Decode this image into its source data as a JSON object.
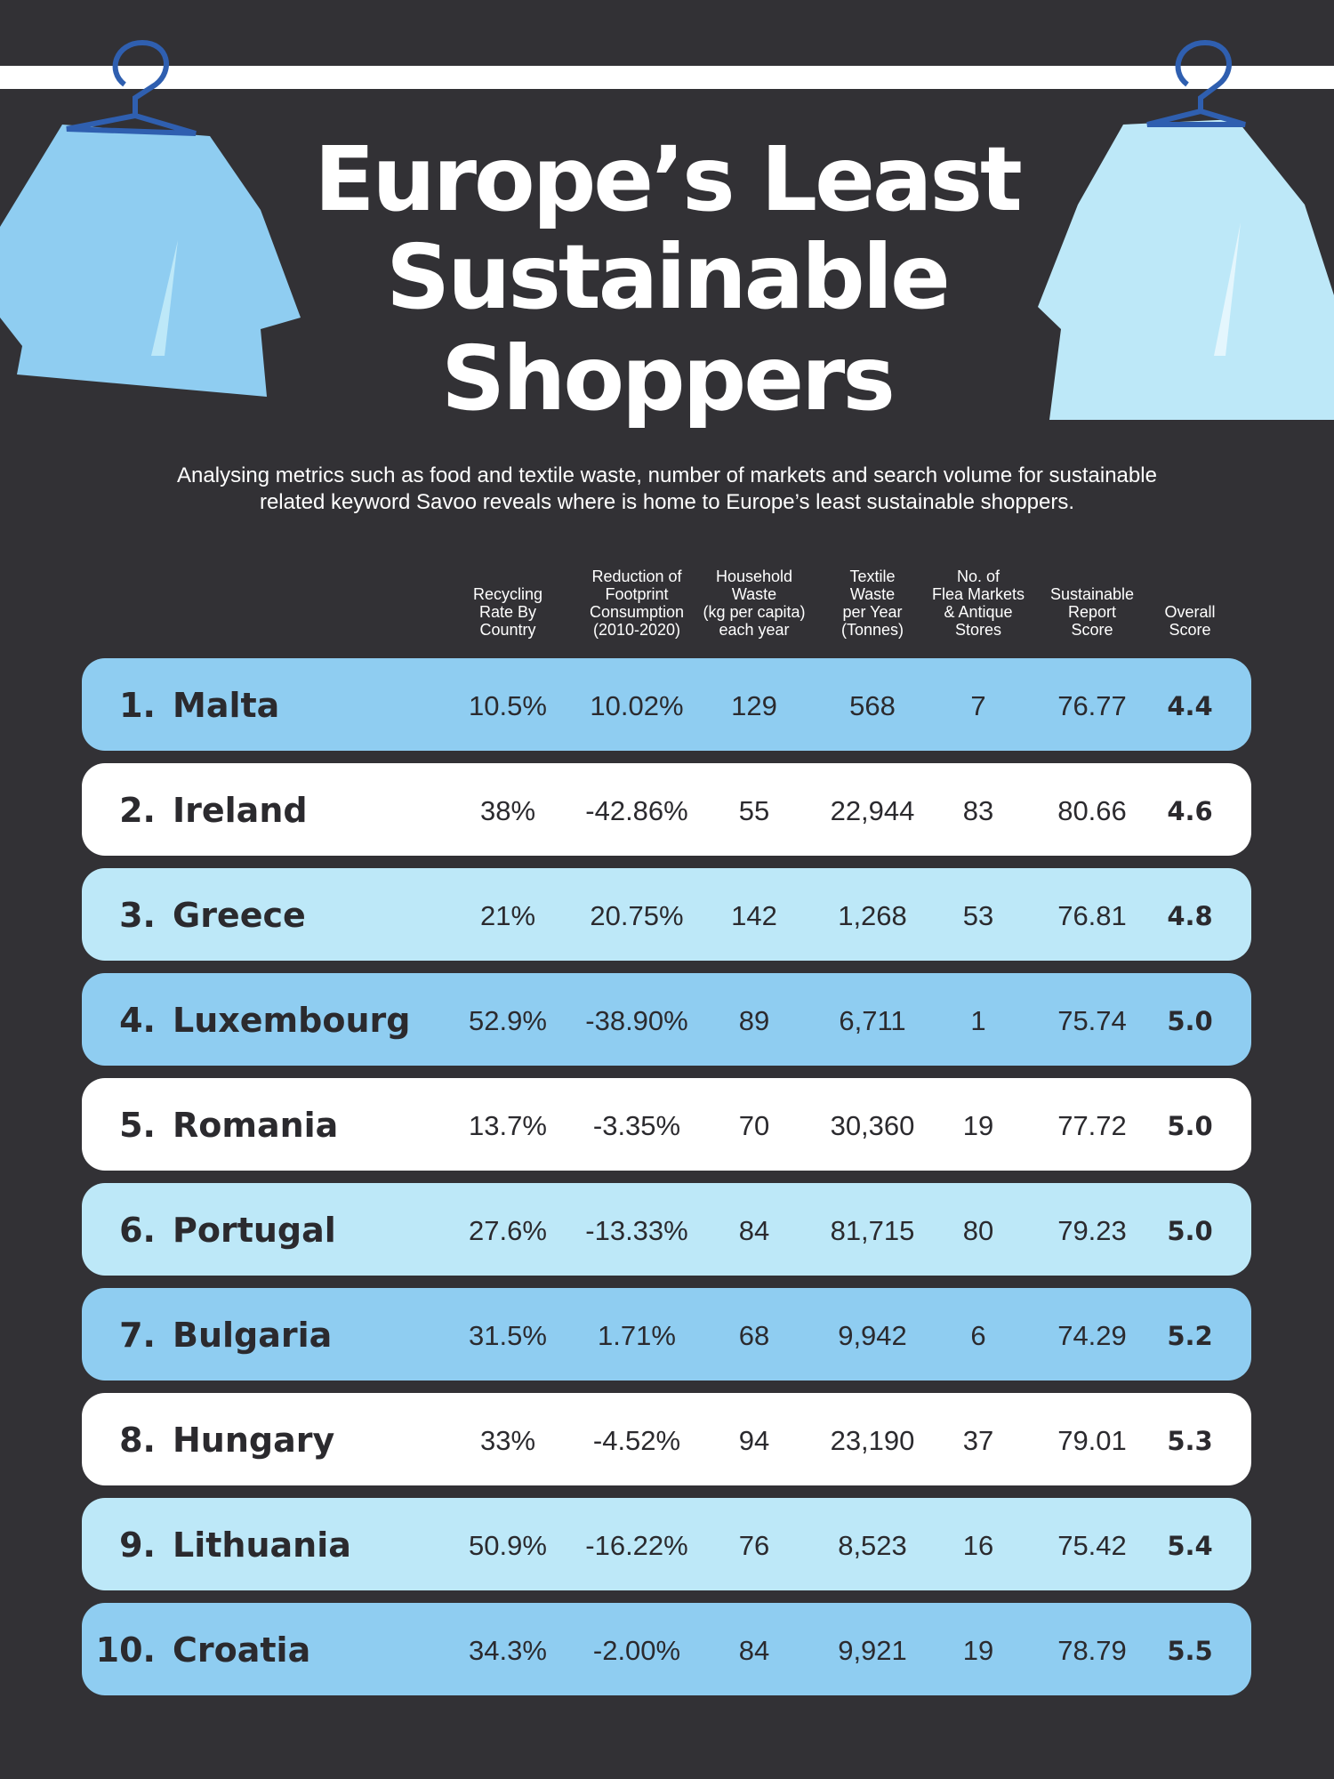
{
  "header": {
    "title": [
      "Europe’s Least",
      "Sustainable",
      "Shoppers"
    ],
    "subtitle": [
      "Analysing metrics such as food and textile waste, number of markets and search volume for sustainable",
      "related keyword Savoo reveals where is home to Europe’s least sustainable shoppers."
    ]
  },
  "table": {
    "columns": [
      [
        "Recycling",
        "Rate By",
        "Country"
      ],
      [
        "Reduction of",
        "Footprint",
        "Consumption",
        "(2010-2020)"
      ],
      [
        "Household",
        "Waste",
        "(kg per capita)",
        "each year"
      ],
      [
        "Textile",
        "Waste",
        "per Year",
        "(Tonnes)"
      ],
      [
        "No. of",
        "Flea Markets",
        "& Antique",
        "Stores"
      ],
      [
        "Sustainable",
        "Report",
        "Score"
      ],
      [
        "Overall",
        "Score"
      ]
    ],
    "rows": [
      {
        "rank": "1.",
        "country": "Malta",
        "cells": [
          "10.5%",
          "10.02%",
          "129",
          "568",
          "7",
          "76.77",
          "4.4"
        ]
      },
      {
        "rank": "2.",
        "country": "Ireland",
        "cells": [
          "38%",
          "-42.86%",
          "55",
          "22,944",
          "83",
          "80.66",
          "4.6"
        ]
      },
      {
        "rank": "3.",
        "country": "Greece",
        "cells": [
          "21%",
          "20.75%",
          "142",
          "1,268",
          "53",
          "76.81",
          "4.8"
        ]
      },
      {
        "rank": "4.",
        "country": "Luxembourg",
        "cells": [
          "52.9%",
          "-38.90%",
          "89",
          "6,711",
          "1",
          "75.74",
          "5.0"
        ]
      },
      {
        "rank": "5.",
        "country": "Romania",
        "cells": [
          "13.7%",
          "-3.35%",
          "70",
          "30,360",
          "19",
          "77.72",
          "5.0"
        ]
      },
      {
        "rank": "6.",
        "country": "Portugal",
        "cells": [
          "27.6%",
          "-13.33%",
          "84",
          "81,715",
          "80",
          "79.23",
          "5.0"
        ]
      },
      {
        "rank": "7.",
        "country": "Bulgaria",
        "cells": [
          "31.5%",
          "1.71%",
          "68",
          "9,942",
          "6",
          "74.29",
          "5.2"
        ]
      },
      {
        "rank": "8.",
        "country": "Hungary",
        "cells": [
          "33%",
          "-4.52%",
          "94",
          "23,190",
          "37",
          "79.01",
          "5.3"
        ]
      },
      {
        "rank": "9.",
        "country": "Lithuania",
        "cells": [
          "50.9%",
          "-16.22%",
          "76",
          "8,523",
          "16",
          "75.42",
          "5.4"
        ]
      },
      {
        "rank": "10.",
        "country": "Croatia",
        "cells": [
          "34.3%",
          "-2.00%",
          "84",
          "9,921",
          "19",
          "78.79",
          "5.5"
        ]
      }
    ]
  }
}
